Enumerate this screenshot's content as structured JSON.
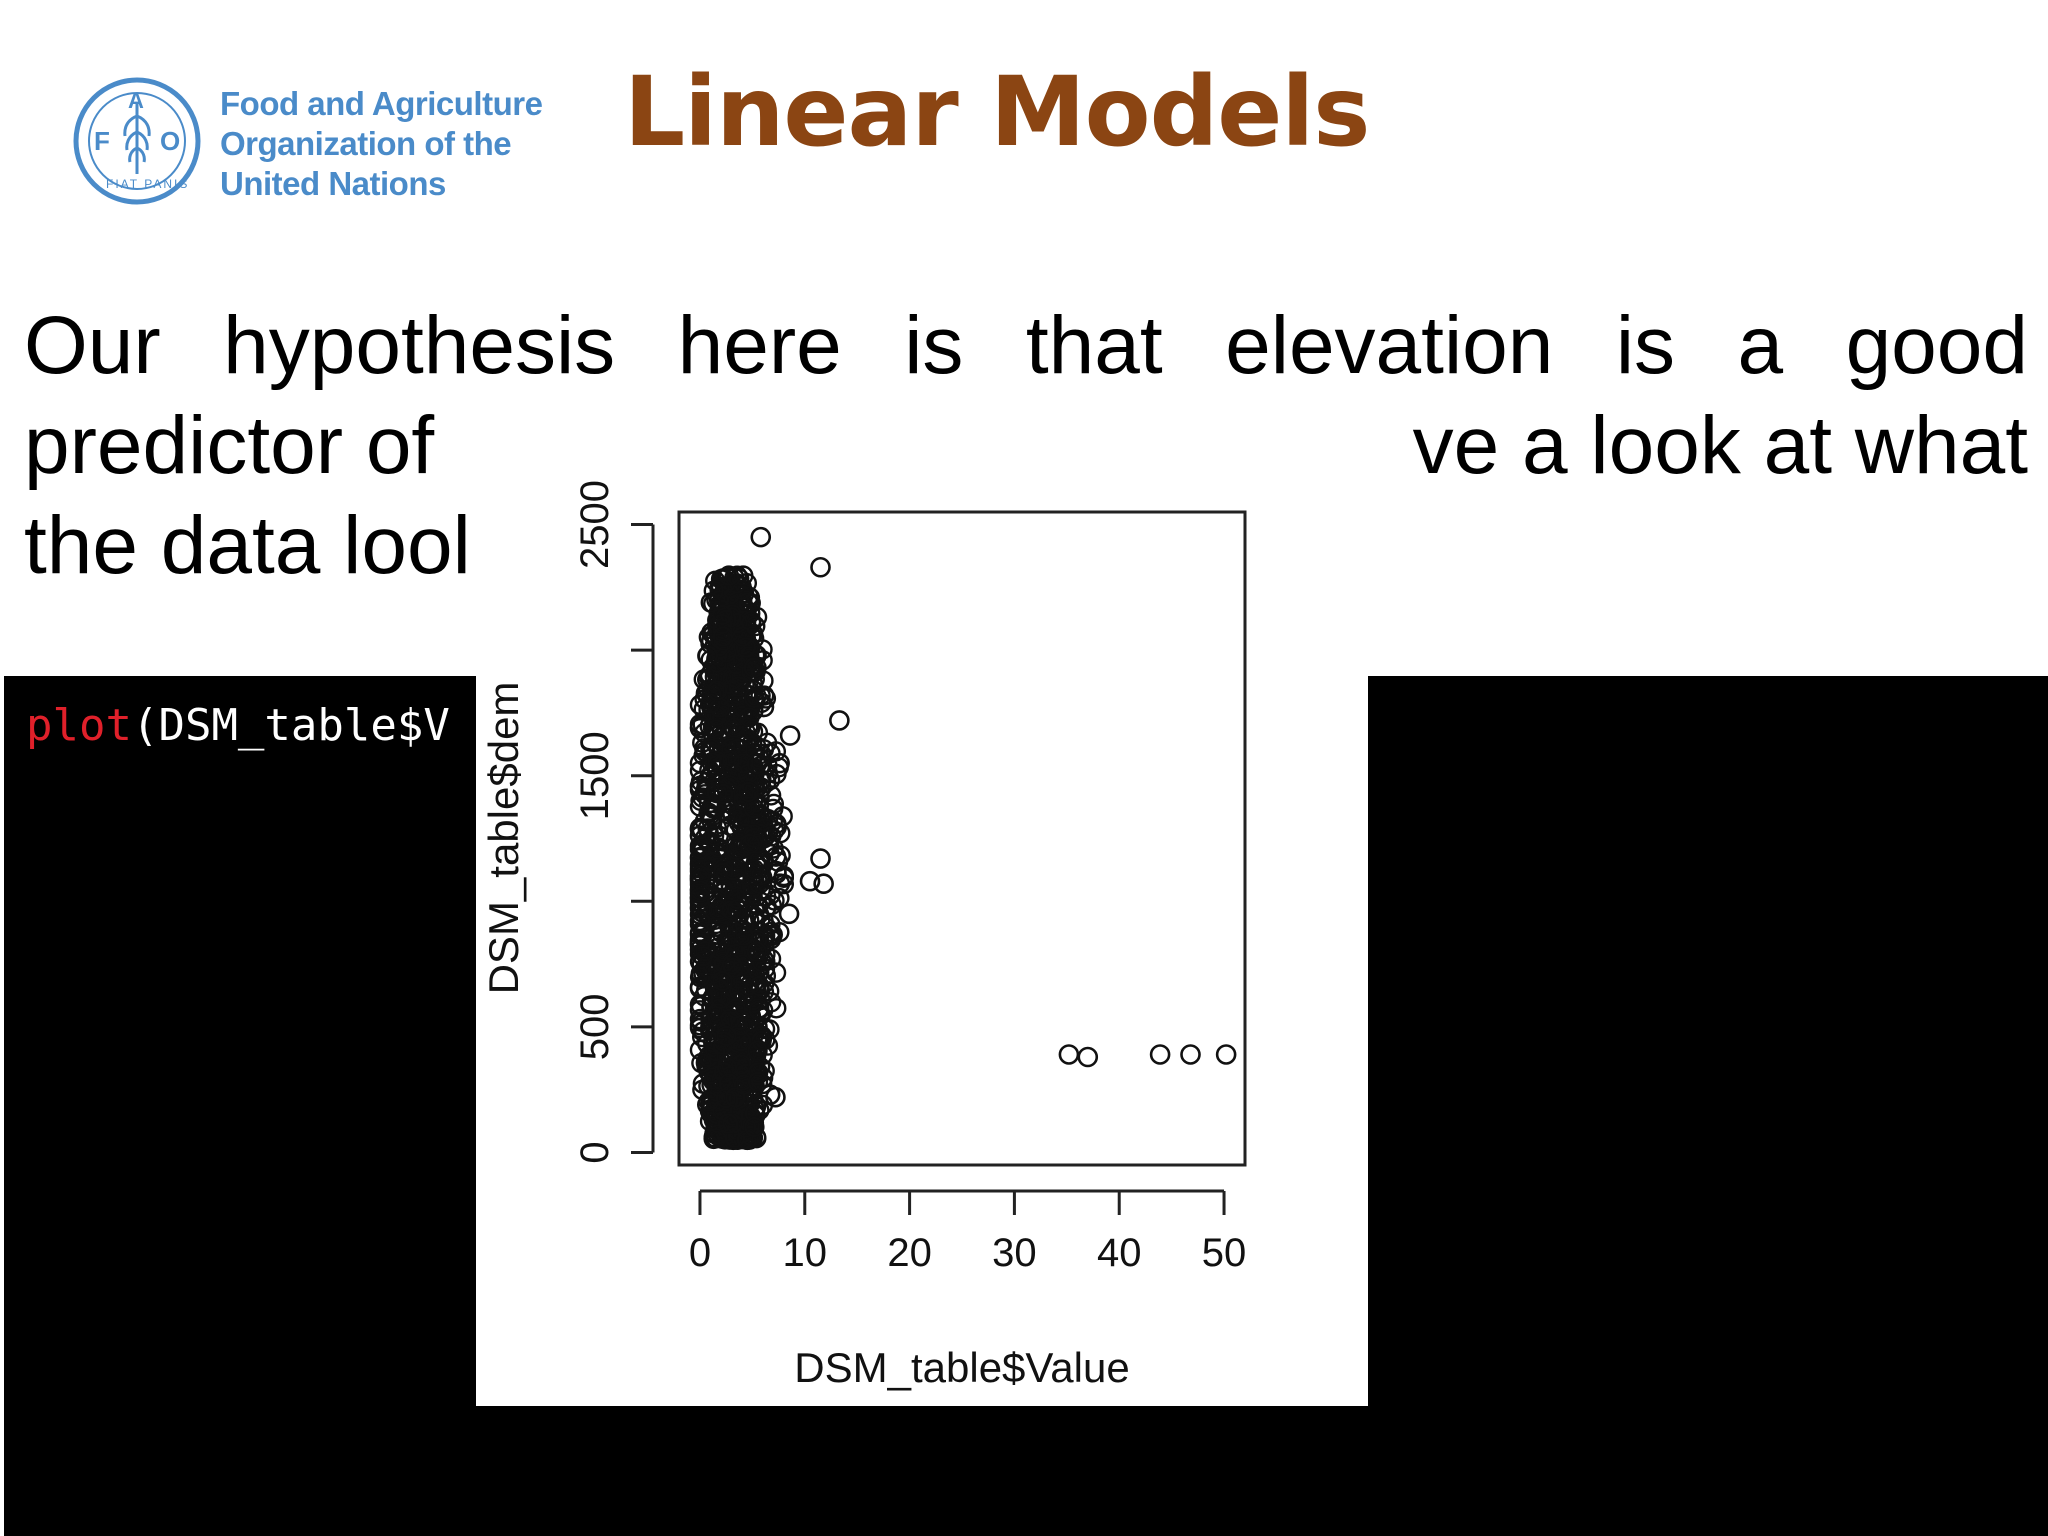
{
  "logo": {
    "lines": [
      "Food and Agriculture",
      "Organization of the",
      "United Nations"
    ],
    "emblem_letters": [
      "F",
      "A",
      "O"
    ],
    "emblem_motto": "FIAT PANIS",
    "color": "#4a8bc9"
  },
  "title": "Linear Models",
  "title_color": "#8b4513",
  "paragraph": {
    "line1_words": [
      "Our",
      "hypothesis",
      "here",
      "is",
      "that",
      "elevation",
      "is",
      "a",
      "good"
    ],
    "line2_left": "predictor of",
    "line2_right": "ve a look at what",
    "line3_left": "the data lool"
  },
  "code": {
    "fn": "plot",
    "rest": "(DSM_table$V"
  },
  "chart_data": {
    "type": "scatter",
    "xlabel": "DSM_table$Value",
    "ylabel": "DSM_table$dem",
    "xlim": [
      -2,
      52
    ],
    "ylim": [
      -50,
      2550
    ],
    "x_ticks": [
      0,
      10,
      20,
      30,
      40,
      50
    ],
    "y_ticks": [
      0,
      500,
      1500,
      2500
    ],
    "y_tick_marks": [
      0,
      500,
      1000,
      1500,
      2000,
      2500
    ],
    "cluster": {
      "description": "dense cloud of points",
      "x_range": [
        0,
        8
      ],
      "y_range": [
        50,
        2300
      ]
    },
    "points": [
      {
        "x": 5.8,
        "y": 2450
      },
      {
        "x": 11.5,
        "y": 2330
      },
      {
        "x": 13.3,
        "y": 1720
      },
      {
        "x": 10.5,
        "y": 1080
      },
      {
        "x": 11.8,
        "y": 1070
      },
      {
        "x": 11.5,
        "y": 1170
      },
      {
        "x": 8.5,
        "y": 950
      },
      {
        "x": 7.6,
        "y": 1550
      },
      {
        "x": 8.6,
        "y": 1660
      },
      {
        "x": 35.2,
        "y": 390
      },
      {
        "x": 37.0,
        "y": 380
      },
      {
        "x": 43.9,
        "y": 390
      },
      {
        "x": 46.8,
        "y": 390
      },
      {
        "x": 50.2,
        "y": 390
      },
      {
        "x": 7.2,
        "y": 220
      },
      {
        "x": 6.7,
        "y": 230
      }
    ]
  }
}
